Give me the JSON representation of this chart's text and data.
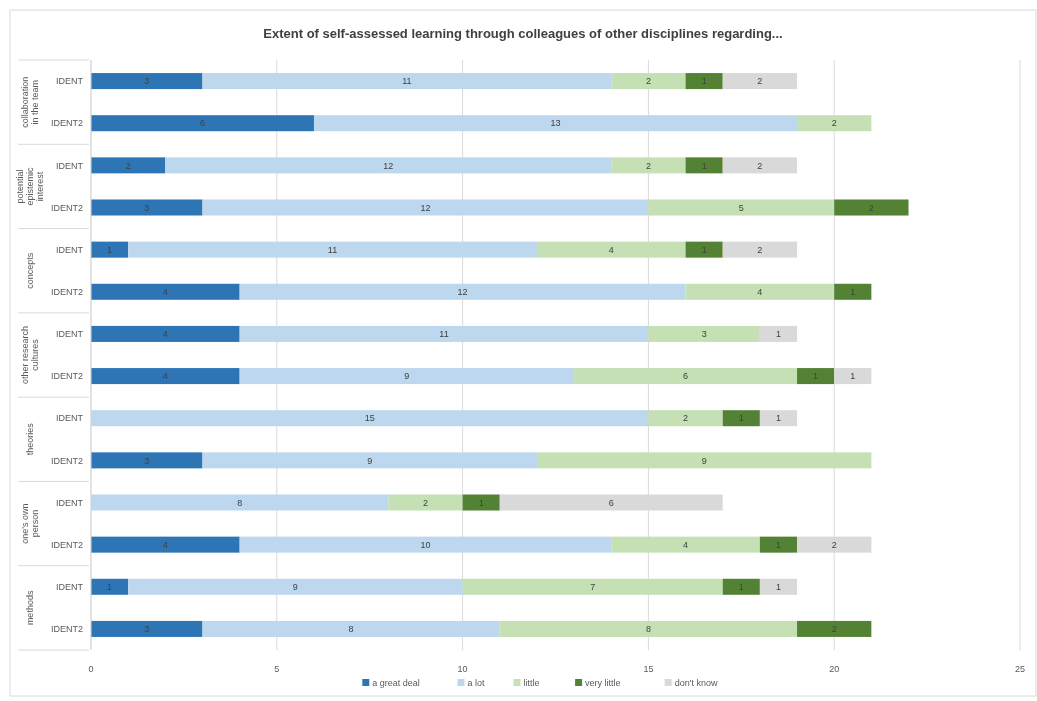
{
  "chart_data": {
    "type": "bar",
    "orientation": "horizontal",
    "stacked": true,
    "title": "Extent of self-assessed learning through colleagues of other disciplines regarding...",
    "categories": [
      "IDENT",
      "IDENT2",
      "IDENT",
      "IDENT2",
      "IDENT",
      "IDENT2",
      "IDENT",
      "IDENT2",
      "IDENT",
      "IDENT2",
      "IDENT",
      "IDENT2",
      "IDENT",
      "IDENT2"
    ],
    "annotations": [
      "collaboration in the team",
      "potential epistemic interest",
      "concepts",
      "other research cultures",
      "theories",
      "one's own person",
      "methods"
    ],
    "series": [
      {
        "name": "a great deal",
        "color": "#2e75b6",
        "values": [
          3,
          6,
          2,
          3,
          1,
          4,
          4,
          4,
          null,
          3,
          null,
          4,
          1,
          3
        ]
      },
      {
        "name": "a lot",
        "color": "#bdd7ee",
        "values": [
          11,
          13,
          12,
          12,
          11,
          12,
          11,
          9,
          15,
          9,
          8,
          10,
          9,
          8
        ]
      },
      {
        "name": "little",
        "color": "#c5e0b4",
        "values": [
          2,
          2,
          2,
          5,
          4,
          4,
          3,
          6,
          2,
          9,
          2,
          4,
          7,
          8
        ]
      },
      {
        "name": "very little",
        "color": "#548235",
        "values": [
          1,
          null,
          1,
          2,
          1,
          1,
          null,
          1,
          1,
          null,
          1,
          1,
          1,
          2
        ]
      },
      {
        "name": "don't know",
        "color": "#d9d9d9",
        "values": [
          2,
          null,
          2,
          null,
          2,
          null,
          1,
          1,
          1,
          null,
          6,
          2,
          1,
          null
        ]
      }
    ],
    "xlim": [
      0,
      25
    ],
    "xticks": [
      0,
      5,
      10,
      15,
      20,
      25
    ],
    "grid": "x",
    "legend": "bottom",
    "data_labels": true
  }
}
